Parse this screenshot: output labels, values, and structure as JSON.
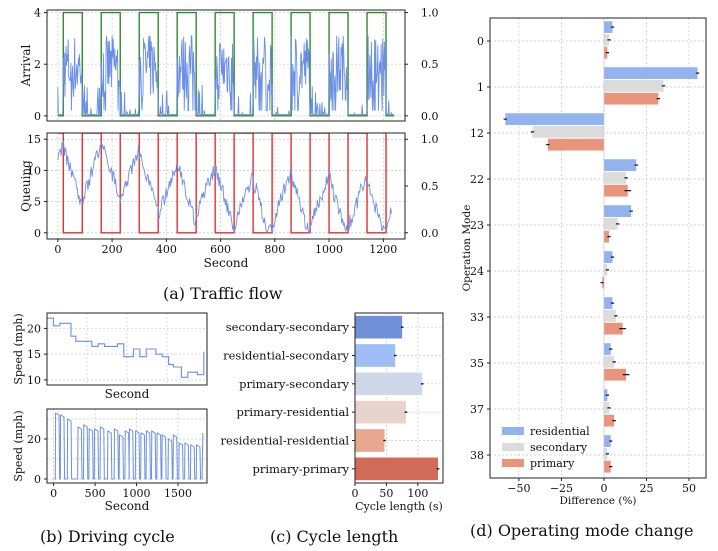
{
  "captions": {
    "a": "(a) Traffic flow",
    "b": "(b) Driving cycle",
    "c": "(c) Cycle length",
    "d": "(d) Operating mode change"
  },
  "colors": {
    "blue": "#6b8fe6",
    "green": "#2e8b2e",
    "red": "#e03030",
    "residential": "#93b3f0",
    "secondary": "#dcdcdc",
    "primary": "#e8957c",
    "grid": "#c8c8c8"
  },
  "chart_data": [
    {
      "id": "arrival",
      "type": "line",
      "ylabel": "Arrival",
      "xlim": [
        -40,
        1280
      ],
      "ylim": [
        -0.2,
        4.1
      ],
      "yticks": [
        0,
        2,
        4
      ],
      "y2ticks": [
        "0.0",
        "0.5",
        "1.0"
      ],
      "grid": true,
      "series": [
        {
          "name": "",
          "color": "#2e8b2e",
          "kind": "square_wave",
          "period": 140,
          "on_fraction": 0.5,
          "y_on": 4,
          "y_off": 0
        },
        {
          "name": "",
          "color": "#6b8fe6",
          "kind": "noisy_arrivals",
          "range": [
            0,
            3
          ]
        }
      ]
    },
    {
      "id": "queuing",
      "type": "line",
      "ylabel": "Queuing",
      "xlabel": "Second",
      "xlim": [
        -40,
        1280
      ],
      "ylim": [
        -1,
        16
      ],
      "xticks": [
        0,
        200,
        400,
        600,
        800,
        1000,
        1200
      ],
      "yticks": [
        0,
        5,
        10,
        15
      ],
      "y2ticks": [
        "0.0",
        "0.5",
        "1.0"
      ],
      "grid": true,
      "series": [
        {
          "name": "",
          "color": "#e03030",
          "kind": "square_wave",
          "period": 140,
          "on_fraction": 0.5,
          "y_on": 16,
          "y_off": 0
        },
        {
          "name": "",
          "color": "#6b8fe6",
          "kind": "queue",
          "range": [
            0,
            15
          ]
        }
      ]
    },
    {
      "id": "speed-top",
      "type": "line",
      "ylabel": "Speed (mph)",
      "xlabel": "Second",
      "yticks": [
        10,
        15,
        20
      ],
      "ylim": [
        9,
        23
      ],
      "xlim": [
        0,
        100
      ],
      "grid": true,
      "series": [
        {
          "name": "",
          "color": "#6b8fe6",
          "x": [
            0,
            4,
            4,
            8,
            8,
            15,
            15,
            18,
            18,
            28,
            28,
            32,
            32,
            36,
            36,
            44,
            44,
            48,
            48,
            54,
            54,
            58,
            58,
            62,
            62,
            68,
            68,
            72,
            72,
            76,
            76,
            79,
            79,
            84,
            84,
            88,
            88,
            94,
            94,
            98,
            98
          ],
          "y": [
            22,
            22,
            20.5,
            20.5,
            21,
            21,
            18.5,
            18.5,
            17.5,
            17.5,
            16.5,
            16.5,
            17,
            17,
            16.5,
            16.5,
            17,
            17,
            14.5,
            14.5,
            16,
            16,
            14.5,
            14.5,
            16,
            16,
            15,
            15,
            14.5,
            14.5,
            13,
            13,
            12.5,
            12.5,
            10.5,
            10.5,
            11.5,
            11.5,
            11,
            11,
            15.5
          ]
        }
      ]
    },
    {
      "id": "speed-bottom",
      "type": "line",
      "ylabel": "Speed (mph)",
      "xlabel": "Second",
      "xlim": [
        -80,
        1850
      ],
      "ylim": [
        -2,
        35
      ],
      "xticks": [
        0,
        500,
        1000,
        1500
      ],
      "yticks": [
        0,
        20
      ],
      "grid": true,
      "series": [
        {
          "name": "",
          "color": "#6b8fe6",
          "kind": "pulse_cycle",
          "starts": [
            20,
            80,
            165,
            290,
            360,
            425,
            490,
            560,
            650,
            730,
            790,
            860,
            910,
            985,
            1050,
            1115,
            1180,
            1245,
            1305,
            1380,
            1440,
            1510,
            1580,
            1650,
            1720
          ],
          "peaks": [
            33,
            32,
            30,
            26,
            27,
            25,
            25,
            26,
            24,
            25,
            22,
            24,
            25,
            24,
            23,
            24,
            24,
            23,
            22,
            20,
            22,
            18,
            18,
            17,
            17
          ]
        }
      ]
    },
    {
      "id": "cycle-length",
      "type": "bar",
      "orientation": "horizontal",
      "xlabel": "Cycle length (s)",
      "xlim": [
        0,
        140
      ],
      "xticks": [
        0,
        50,
        100
      ],
      "categories": [
        "secondary-secondary",
        "residential-secondary",
        "primary-secondary",
        "primary-residential",
        "residential-residential",
        "primary-primary"
      ],
      "values": [
        75,
        64,
        107,
        81,
        47,
        132
      ],
      "errors": [
        2,
        2,
        2,
        2,
        2,
        2
      ],
      "colors": [
        "#7090d8",
        "#9ebef5",
        "#cfd8e8",
        "#e8d4cc",
        "#eaa78f",
        "#d26a58"
      ],
      "grid": true
    },
    {
      "id": "operating-mode",
      "type": "bar",
      "orientation": "horizontal",
      "ylabel": "Operation Mode",
      "xlabel": "Difference (%)",
      "xlim": [
        -67,
        60
      ],
      "xticks": [
        -50,
        -25,
        0,
        25,
        50
      ],
      "categories": [
        "0",
        "1",
        "12",
        "22",
        "23",
        "24",
        "33",
        "35",
        "37",
        "38"
      ],
      "series": [
        {
          "name": "residential",
          "color": "#93b3f0",
          "values": [
            5,
            55,
            -58,
            19,
            16,
            5,
            5,
            4,
            2,
            4
          ],
          "errors": [
            1,
            1,
            1,
            1,
            1,
            1,
            1,
            1,
            1,
            1
          ]
        },
        {
          "name": "secondary",
          "color": "#dcdcdc",
          "values": [
            3,
            35,
            -42,
            13,
            8,
            2,
            7,
            6,
            3,
            2
          ],
          "errors": [
            1,
            1,
            1,
            1,
            1,
            1,
            1,
            1,
            1,
            1
          ]
        },
        {
          "name": "primary",
          "color": "#e8957c",
          "values": [
            2,
            32,
            -33,
            14,
            3,
            -1,
            11,
            13,
            6,
            4
          ],
          "errors": [
            1,
            1,
            1,
            2,
            1,
            1,
            2,
            2,
            1,
            1
          ]
        }
      ],
      "legend": "bottom-left",
      "grid": true
    }
  ]
}
